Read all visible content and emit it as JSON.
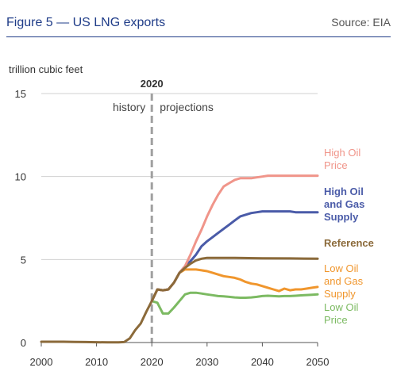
{
  "figure": {
    "title": "Figure 5 — US LNG exports",
    "source": "Source: EIA"
  },
  "chart_data": {
    "type": "line",
    "ylabel": "trillion cubic feet",
    "xlim": [
      2000,
      2050
    ],
    "ylim": [
      0,
      15
    ],
    "xticks": [
      "2000",
      "2010",
      "2020",
      "2030",
      "2040",
      "2050"
    ],
    "yticks": [
      "0",
      "5",
      "10",
      "15"
    ],
    "grid": "horizontal",
    "divider": {
      "x": 2020,
      "label": "2020",
      "left_text": "history",
      "right_text": "projections"
    },
    "history": {
      "color": "#8b6a3a",
      "x": [
        2000,
        2002,
        2004,
        2006,
        2008,
        2010,
        2012,
        2014,
        2015,
        2016,
        2017,
        2018,
        2019,
        2020
      ],
      "y": [
        0.05,
        0.05,
        0.05,
        0.04,
        0.03,
        0.02,
        0.01,
        0.01,
        0.03,
        0.25,
        0.75,
        1.15,
        1.85,
        2.5
      ]
    },
    "series": [
      {
        "name": "High Oil\nPrice",
        "color": "#f0958a",
        "x": [
          2020,
          2021,
          2022,
          2023,
          2024,
          2025,
          2026,
          2027,
          2028,
          2029,
          2030,
          2031,
          2032,
          2033,
          2034,
          2035,
          2036,
          2037,
          2038,
          2039,
          2040,
          2041,
          2042,
          2043,
          2044,
          2045,
          2046,
          2047,
          2048,
          2049,
          2050
        ],
        "y": [
          2.5,
          3.2,
          3.15,
          3.2,
          3.6,
          4.2,
          4.6,
          5.3,
          6.1,
          6.8,
          7.6,
          8.3,
          8.9,
          9.4,
          9.6,
          9.8,
          9.9,
          9.9,
          9.9,
          9.95,
          10.0,
          10.05,
          10.05,
          10.05,
          10.05,
          10.05,
          10.05,
          10.05,
          10.05,
          10.05,
          10.05
        ]
      },
      {
        "name": "High Oil\nand Gas\nSupply",
        "color": "#4a5ba8",
        "x": [
          2020,
          2021,
          2022,
          2023,
          2024,
          2025,
          2026,
          2027,
          2028,
          2029,
          2030,
          2031,
          2032,
          2033,
          2034,
          2035,
          2036,
          2037,
          2038,
          2039,
          2040,
          2041,
          2042,
          2043,
          2044,
          2045,
          2046,
          2047,
          2048,
          2049,
          2050
        ],
        "y": [
          2.5,
          3.2,
          3.15,
          3.2,
          3.6,
          4.2,
          4.6,
          4.9,
          5.3,
          5.8,
          6.1,
          6.35,
          6.6,
          6.85,
          7.1,
          7.35,
          7.6,
          7.7,
          7.8,
          7.85,
          7.9,
          7.9,
          7.9,
          7.9,
          7.9,
          7.9,
          7.85,
          7.85,
          7.85,
          7.85,
          7.85
        ]
      },
      {
        "name": "Reference",
        "color": "#8b6a3a",
        "x": [
          2020,
          2021,
          2022,
          2023,
          2024,
          2025,
          2026,
          2027,
          2028,
          2029,
          2030,
          2031,
          2035,
          2040,
          2045,
          2050
        ],
        "y": [
          2.5,
          3.2,
          3.15,
          3.2,
          3.6,
          4.2,
          4.5,
          4.75,
          4.95,
          5.05,
          5.1,
          5.1,
          5.1,
          5.08,
          5.07,
          5.05
        ]
      },
      {
        "name": "Low Oil\nand Gas\nSupply",
        "color": "#f0962d",
        "x": [
          2020,
          2021,
          2022,
          2023,
          2024,
          2025,
          2026,
          2027,
          2028,
          2029,
          2030,
          2031,
          2032,
          2033,
          2034,
          2035,
          2036,
          2037,
          2038,
          2039,
          2040,
          2041,
          2042,
          2043,
          2044,
          2045,
          2046,
          2047,
          2048,
          2049,
          2050
        ],
        "y": [
          2.5,
          3.2,
          3.15,
          3.2,
          3.6,
          4.2,
          4.4,
          4.4,
          4.4,
          4.35,
          4.3,
          4.2,
          4.1,
          4.0,
          3.95,
          3.9,
          3.8,
          3.65,
          3.55,
          3.5,
          3.4,
          3.3,
          3.2,
          3.1,
          3.25,
          3.15,
          3.2,
          3.2,
          3.25,
          3.3,
          3.35
        ]
      },
      {
        "name": "Low Oil\nPrice",
        "color": "#7cba62",
        "x": [
          2020,
          2021,
          2022,
          2023,
          2024,
          2025,
          2026,
          2027,
          2028,
          2029,
          2030,
          2031,
          2032,
          2033,
          2034,
          2035,
          2036,
          2037,
          2038,
          2039,
          2040,
          2041,
          2042,
          2043,
          2044,
          2045,
          2046,
          2047,
          2048,
          2049,
          2050
        ],
        "y": [
          2.5,
          2.4,
          1.75,
          1.75,
          2.1,
          2.5,
          2.9,
          3.0,
          3.0,
          2.95,
          2.9,
          2.85,
          2.8,
          2.78,
          2.75,
          2.72,
          2.7,
          2.7,
          2.72,
          2.75,
          2.8,
          2.82,
          2.8,
          2.78,
          2.8,
          2.8,
          2.82,
          2.84,
          2.86,
          2.88,
          2.9
        ]
      }
    ]
  }
}
